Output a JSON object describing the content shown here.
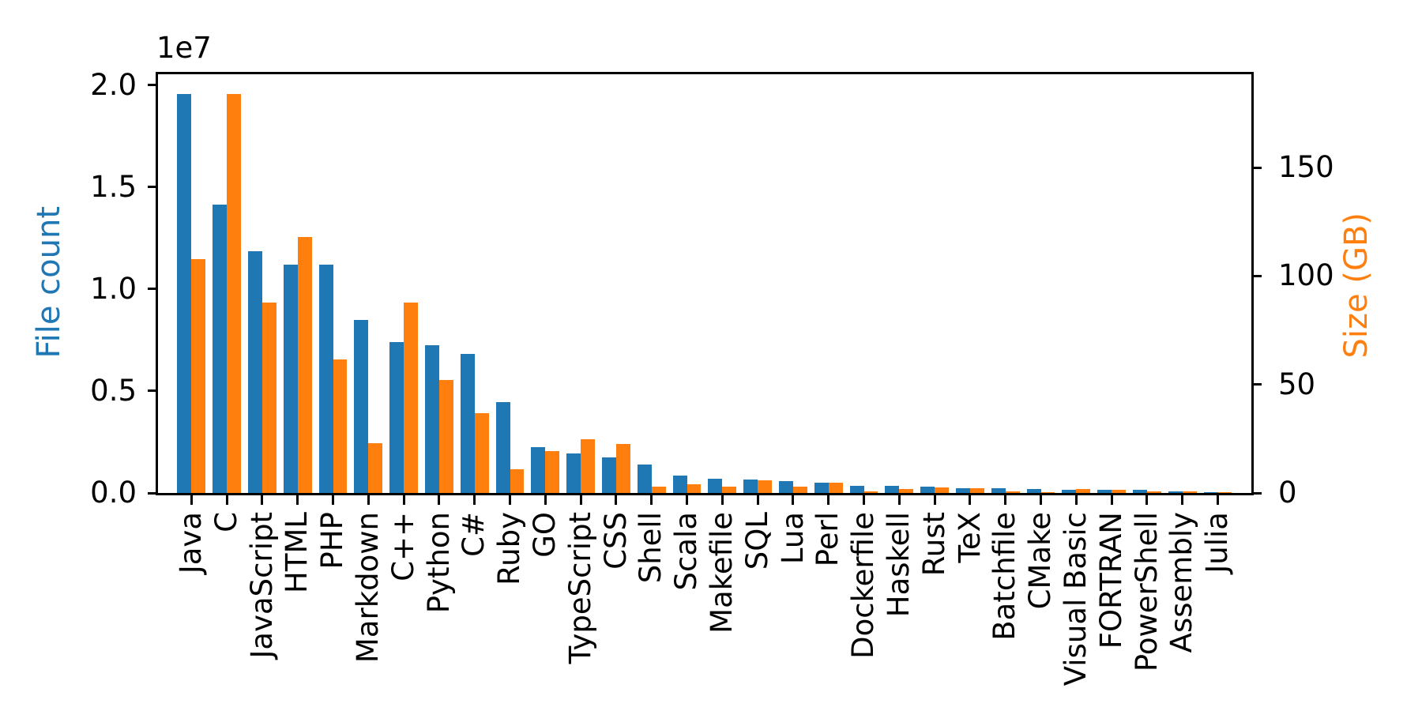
{
  "figure": {
    "background": "#ffffff",
    "axis_color": "#000000"
  },
  "chart_data": {
    "type": "bar",
    "title": "",
    "xlabel": "",
    "ylabel_left": "File count",
    "ylabel_right": "Size (GB)",
    "offset_text": "1e7",
    "grid": false,
    "legend": "none",
    "categories": [
      "Java",
      "C",
      "JavaScript",
      "HTML",
      "PHP",
      "Markdown",
      "C++",
      "Python",
      "C#",
      "Ruby",
      "GO",
      "TypeScript",
      "CSS",
      "Shell",
      "Scala",
      "Makefile",
      "SQL",
      "Lua",
      "Perl",
      "Dockerfile",
      "Haskell",
      "Rust",
      "TeX",
      "Batchfile",
      "CMake",
      "Visual Basic",
      "FORTRAN",
      "PowerShell",
      "Assembly",
      "Julia"
    ],
    "series": [
      {
        "name": "File count",
        "axis": "left",
        "color": "#1f77b4",
        "values": [
          19548190,
          14143113,
          11839883,
          11178557,
          11177610,
          8464626,
          7380520,
          7226626,
          6811652,
          4473331,
          2265436,
          1940406,
          1734406,
          1385648,
          835755,
          679430,
          656671,
          578554,
          497949,
          366505,
          340623,
          322431,
          251015,
          236945,
          175282,
          155652,
          142038,
          136846,
          82905,
          58317
        ]
      },
      {
        "name": "Size (GB)",
        "axis": "right",
        "color": "#ff7f0e",
        "values": [
          107.7,
          183.83,
          87.82,
          118.12,
          61.41,
          23.09,
          87.73,
          52.03,
          36.83,
          10.95,
          19.28,
          24.59,
          22.67,
          3.01,
          3.87,
          2.92,
          5.67,
          2.81,
          4.7,
          0.71,
          1.85,
          2.68,
          2.15,
          0.7,
          0.54,
          1.91,
          1.62,
          0.69,
          0.78,
          0.29
        ]
      }
    ],
    "ylim_left": [
      0,
      20525600
    ],
    "ylim_right": [
      0,
      193
    ],
    "yticks_left": {
      "values": [
        0,
        5000000,
        10000000,
        15000000,
        20000000
      ],
      "labels": [
        "0.0",
        "0.5",
        "1.0",
        "1.5",
        "2.0"
      ]
    },
    "yticks_right": {
      "values": [
        0,
        50,
        100,
        150
      ],
      "labels": [
        "0",
        "50",
        "100",
        "150"
      ]
    }
  }
}
